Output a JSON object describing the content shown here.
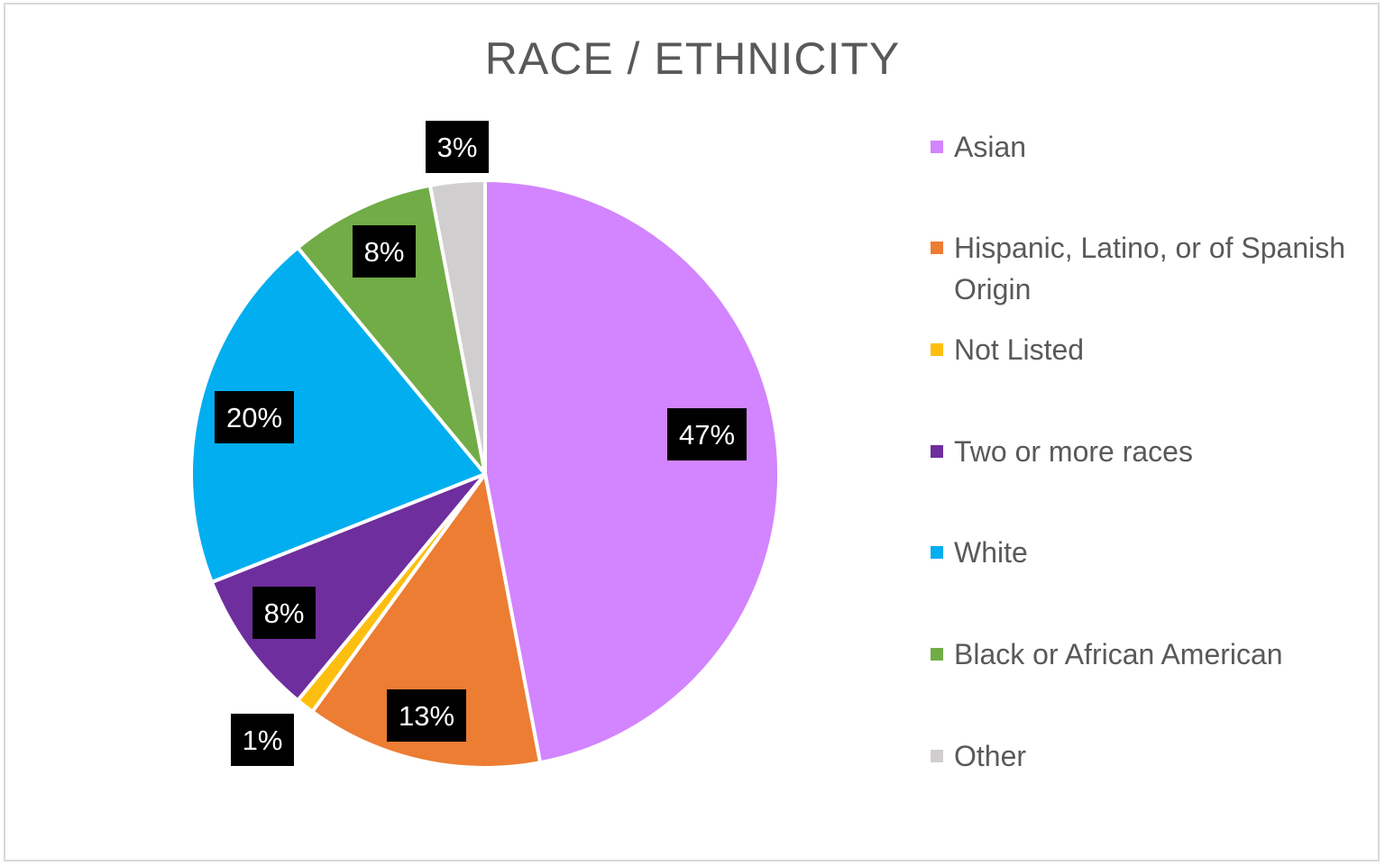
{
  "chart_data": {
    "type": "pie",
    "title": "RACE / ETHNICITY",
    "legend_position": "right",
    "slices": [
      {
        "name": "Asian",
        "value": 47,
        "label": "47%",
        "color": "#d285fe"
      },
      {
        "name": "Hispanic, Latino, or of Spanish Origin",
        "value": 13,
        "label": "13%",
        "color": "#ec7d33"
      },
      {
        "name": "Not Listed",
        "value": 1,
        "label": "1%",
        "color": "#fdbf0f"
      },
      {
        "name": "Two or more races",
        "value": 8,
        "label": "8%",
        "color": "#6e2e9d"
      },
      {
        "name": "White",
        "value": 20,
        "label": "20%",
        "color": "#01aeef"
      },
      {
        "name": "Black or African American",
        "value": 8,
        "label": "8%",
        "color": "#71ac47"
      },
      {
        "name": "Other",
        "value": 3,
        "label": "3%",
        "color": "#d0cece"
      }
    ]
  }
}
